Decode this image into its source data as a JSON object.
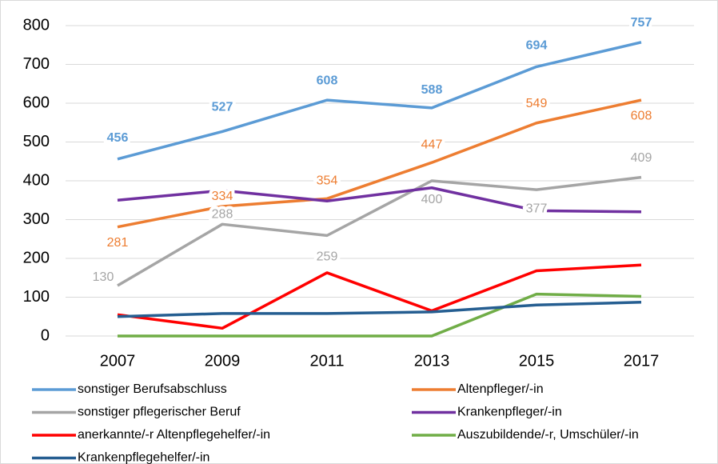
{
  "chart_data": {
    "type": "line",
    "categories": [
      "2007",
      "2009",
      "2011",
      "2013",
      "2015",
      "2017"
    ],
    "ylim": [
      0,
      800
    ],
    "yticks": [
      0,
      100,
      200,
      300,
      400,
      500,
      600,
      700,
      800
    ],
    "grid": true,
    "series": [
      {
        "name": "sonstiger Berufsabschluss",
        "color": "#5b9bd5",
        "values": [
          456,
          527,
          608,
          588,
          694,
          757
        ],
        "data_labels": true
      },
      {
        "name": "Altenpfleger/-in",
        "color": "#ed7d31",
        "values": [
          281,
          334,
          354,
          447,
          549,
          608
        ],
        "data_labels": true
      },
      {
        "name": "sonstiger pflegerischer Beruf",
        "color": "#a5a5a5",
        "values": [
          130,
          288,
          259,
          400,
          377,
          409
        ],
        "data_labels": true
      },
      {
        "name": "Krankenpfleger/-in",
        "color": "#7030a0",
        "values": [
          350,
          375,
          348,
          382,
          323,
          320
        ],
        "data_labels": false
      },
      {
        "name": "anerkannte/-r Altenpflegehelfer/-in",
        "color": "#ff0000",
        "values": [
          55,
          20,
          163,
          65,
          168,
          183
        ],
        "data_labels": false
      },
      {
        "name": "Auszubildende/-r, Umschüler/-in",
        "color": "#70ad47",
        "values": [
          0,
          0,
          0,
          0,
          108,
          102
        ],
        "data_labels": false
      },
      {
        "name": "Krankenpflegehelfer/-in",
        "color": "#255e91",
        "values": [
          50,
          58,
          58,
          62,
          80,
          87
        ],
        "data_labels": false
      }
    ]
  }
}
